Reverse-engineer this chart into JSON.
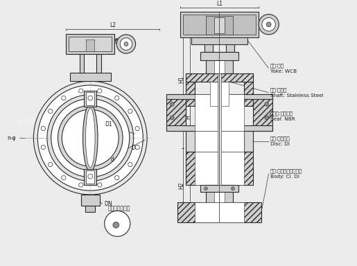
{
  "bg_color": "#f0f0f0",
  "line_color": "#2a2a2a",
  "labels": {
    "L2": "L2",
    "L1": "L1",
    "H1": "H1",
    "H": "H",
    "H2": "H2",
    "D": "D",
    "D1": "D1",
    "d": "d",
    "DN": "DN",
    "n_phi": "n-φ",
    "yoke_cn": "支架:碳钢",
    "yoke_en": "Yoke: WCB",
    "shaft_cn": "转轴:不锈钢",
    "shaft_en": "Shaft: Stainless Steel",
    "seal_cn": "密封圈:丁青橡胶",
    "seal_en": "Seal: NBR",
    "disc_cn": "阀板:球墨铸铁",
    "disc_en": "Disc: DI",
    "body_cn": "阀体:灰铸铁、球墨铸铁",
    "body_en": "Body: CI. DI",
    "seal_detail": "密封圈局部放大"
  }
}
